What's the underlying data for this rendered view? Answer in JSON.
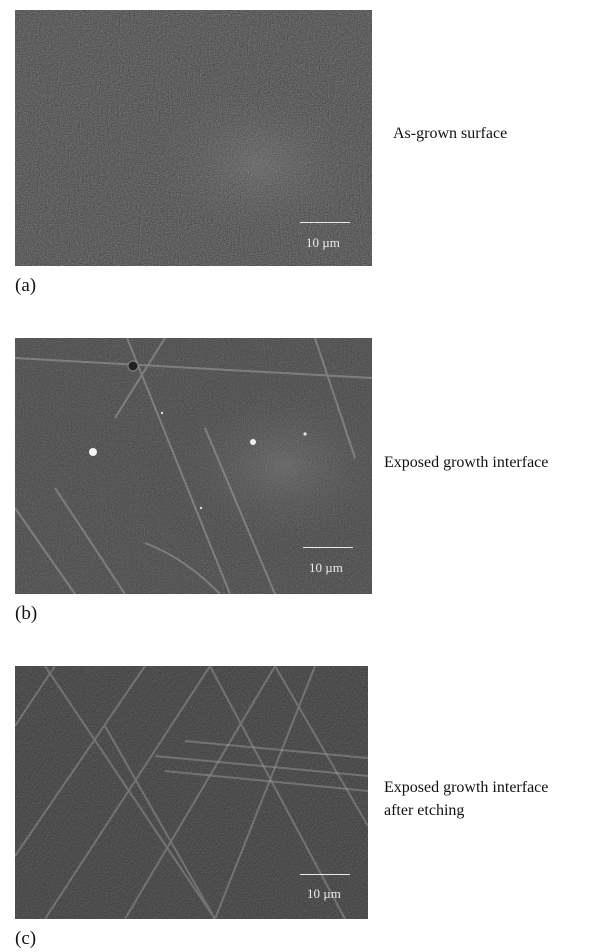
{
  "figure": {
    "panels": [
      {
        "label": "(a)",
        "caption_lines": [
          "As-grown surface"
        ],
        "scale_bar": "10 µm"
      },
      {
        "label": "(b)",
        "caption_lines": [
          "Exposed growth interface"
        ],
        "scale_bar": "10 µm"
      },
      {
        "label": "(c)",
        "caption_lines": [
          "Exposed growth interface",
          "after etching"
        ],
        "scale_bar": "10 µm"
      }
    ]
  }
}
